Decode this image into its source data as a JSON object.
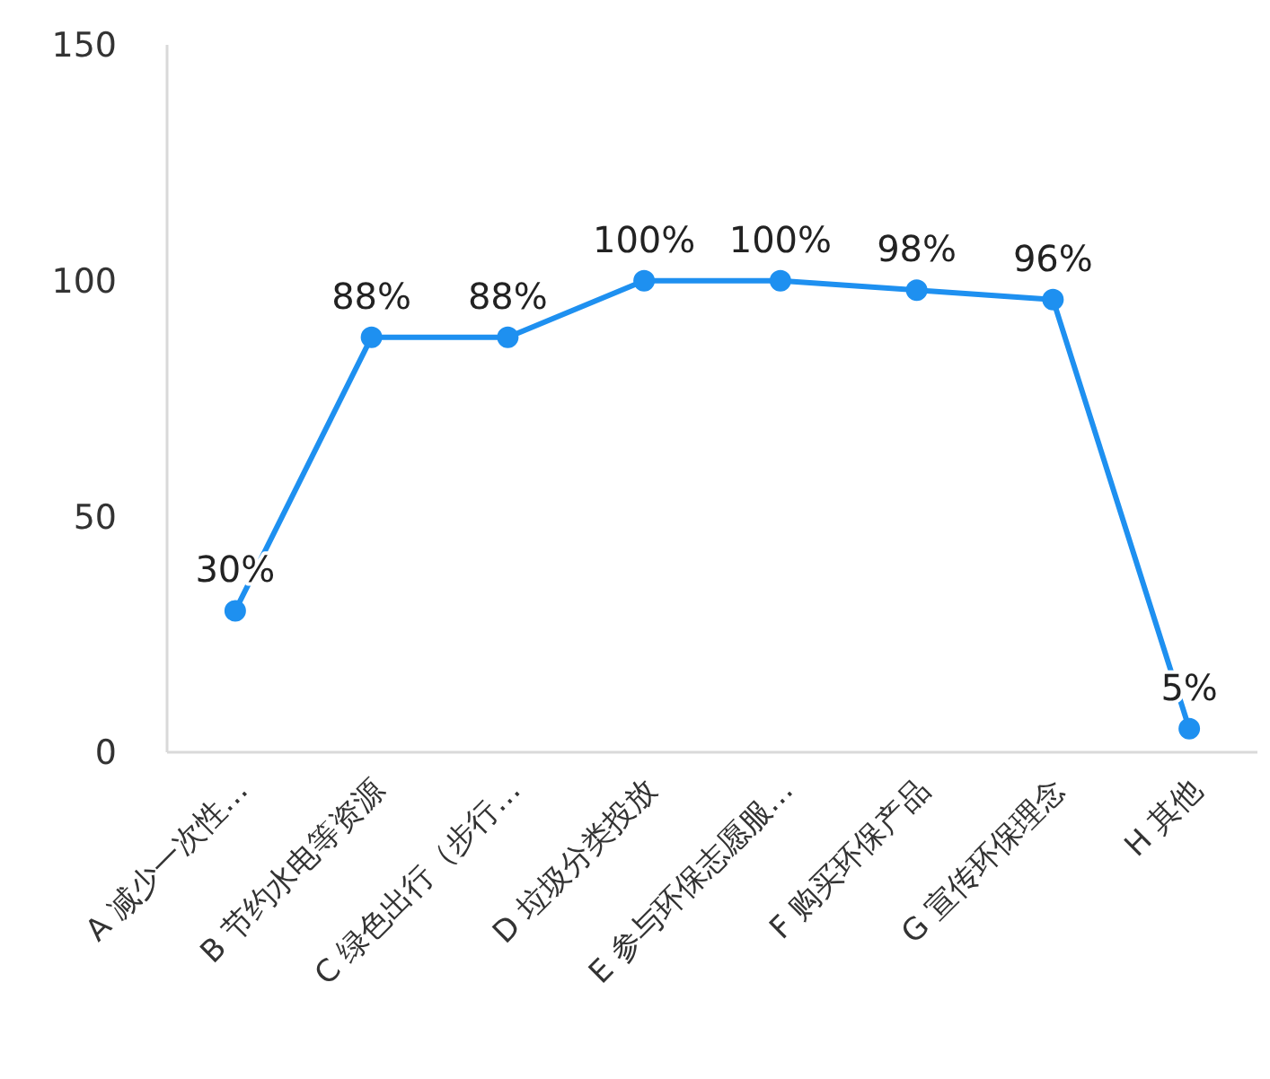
{
  "chart_data": {
    "type": "line",
    "categories": [
      "A 减少一次性…",
      "B 节约水电等资源",
      "C 绿色出行（步行…",
      "D 垃圾分类投放",
      "E 参与环保志愿服…",
      "F 购买环保产品",
      "G 宣传环保理念",
      "H 其他"
    ],
    "series": [
      {
        "color": "#1e90f0",
        "values": [
          30,
          88,
          88,
          100,
          100,
          98,
          96,
          5
        ],
        "value_labels": [
          "30%",
          "88%",
          "88%",
          "100%",
          "100%",
          "98%",
          "96%",
          "5%"
        ]
      }
    ],
    "ylim": [
      0,
      150
    ],
    "yticks": [
      0,
      50,
      100,
      150
    ],
    "marker": "circle",
    "line_style": "solid"
  }
}
